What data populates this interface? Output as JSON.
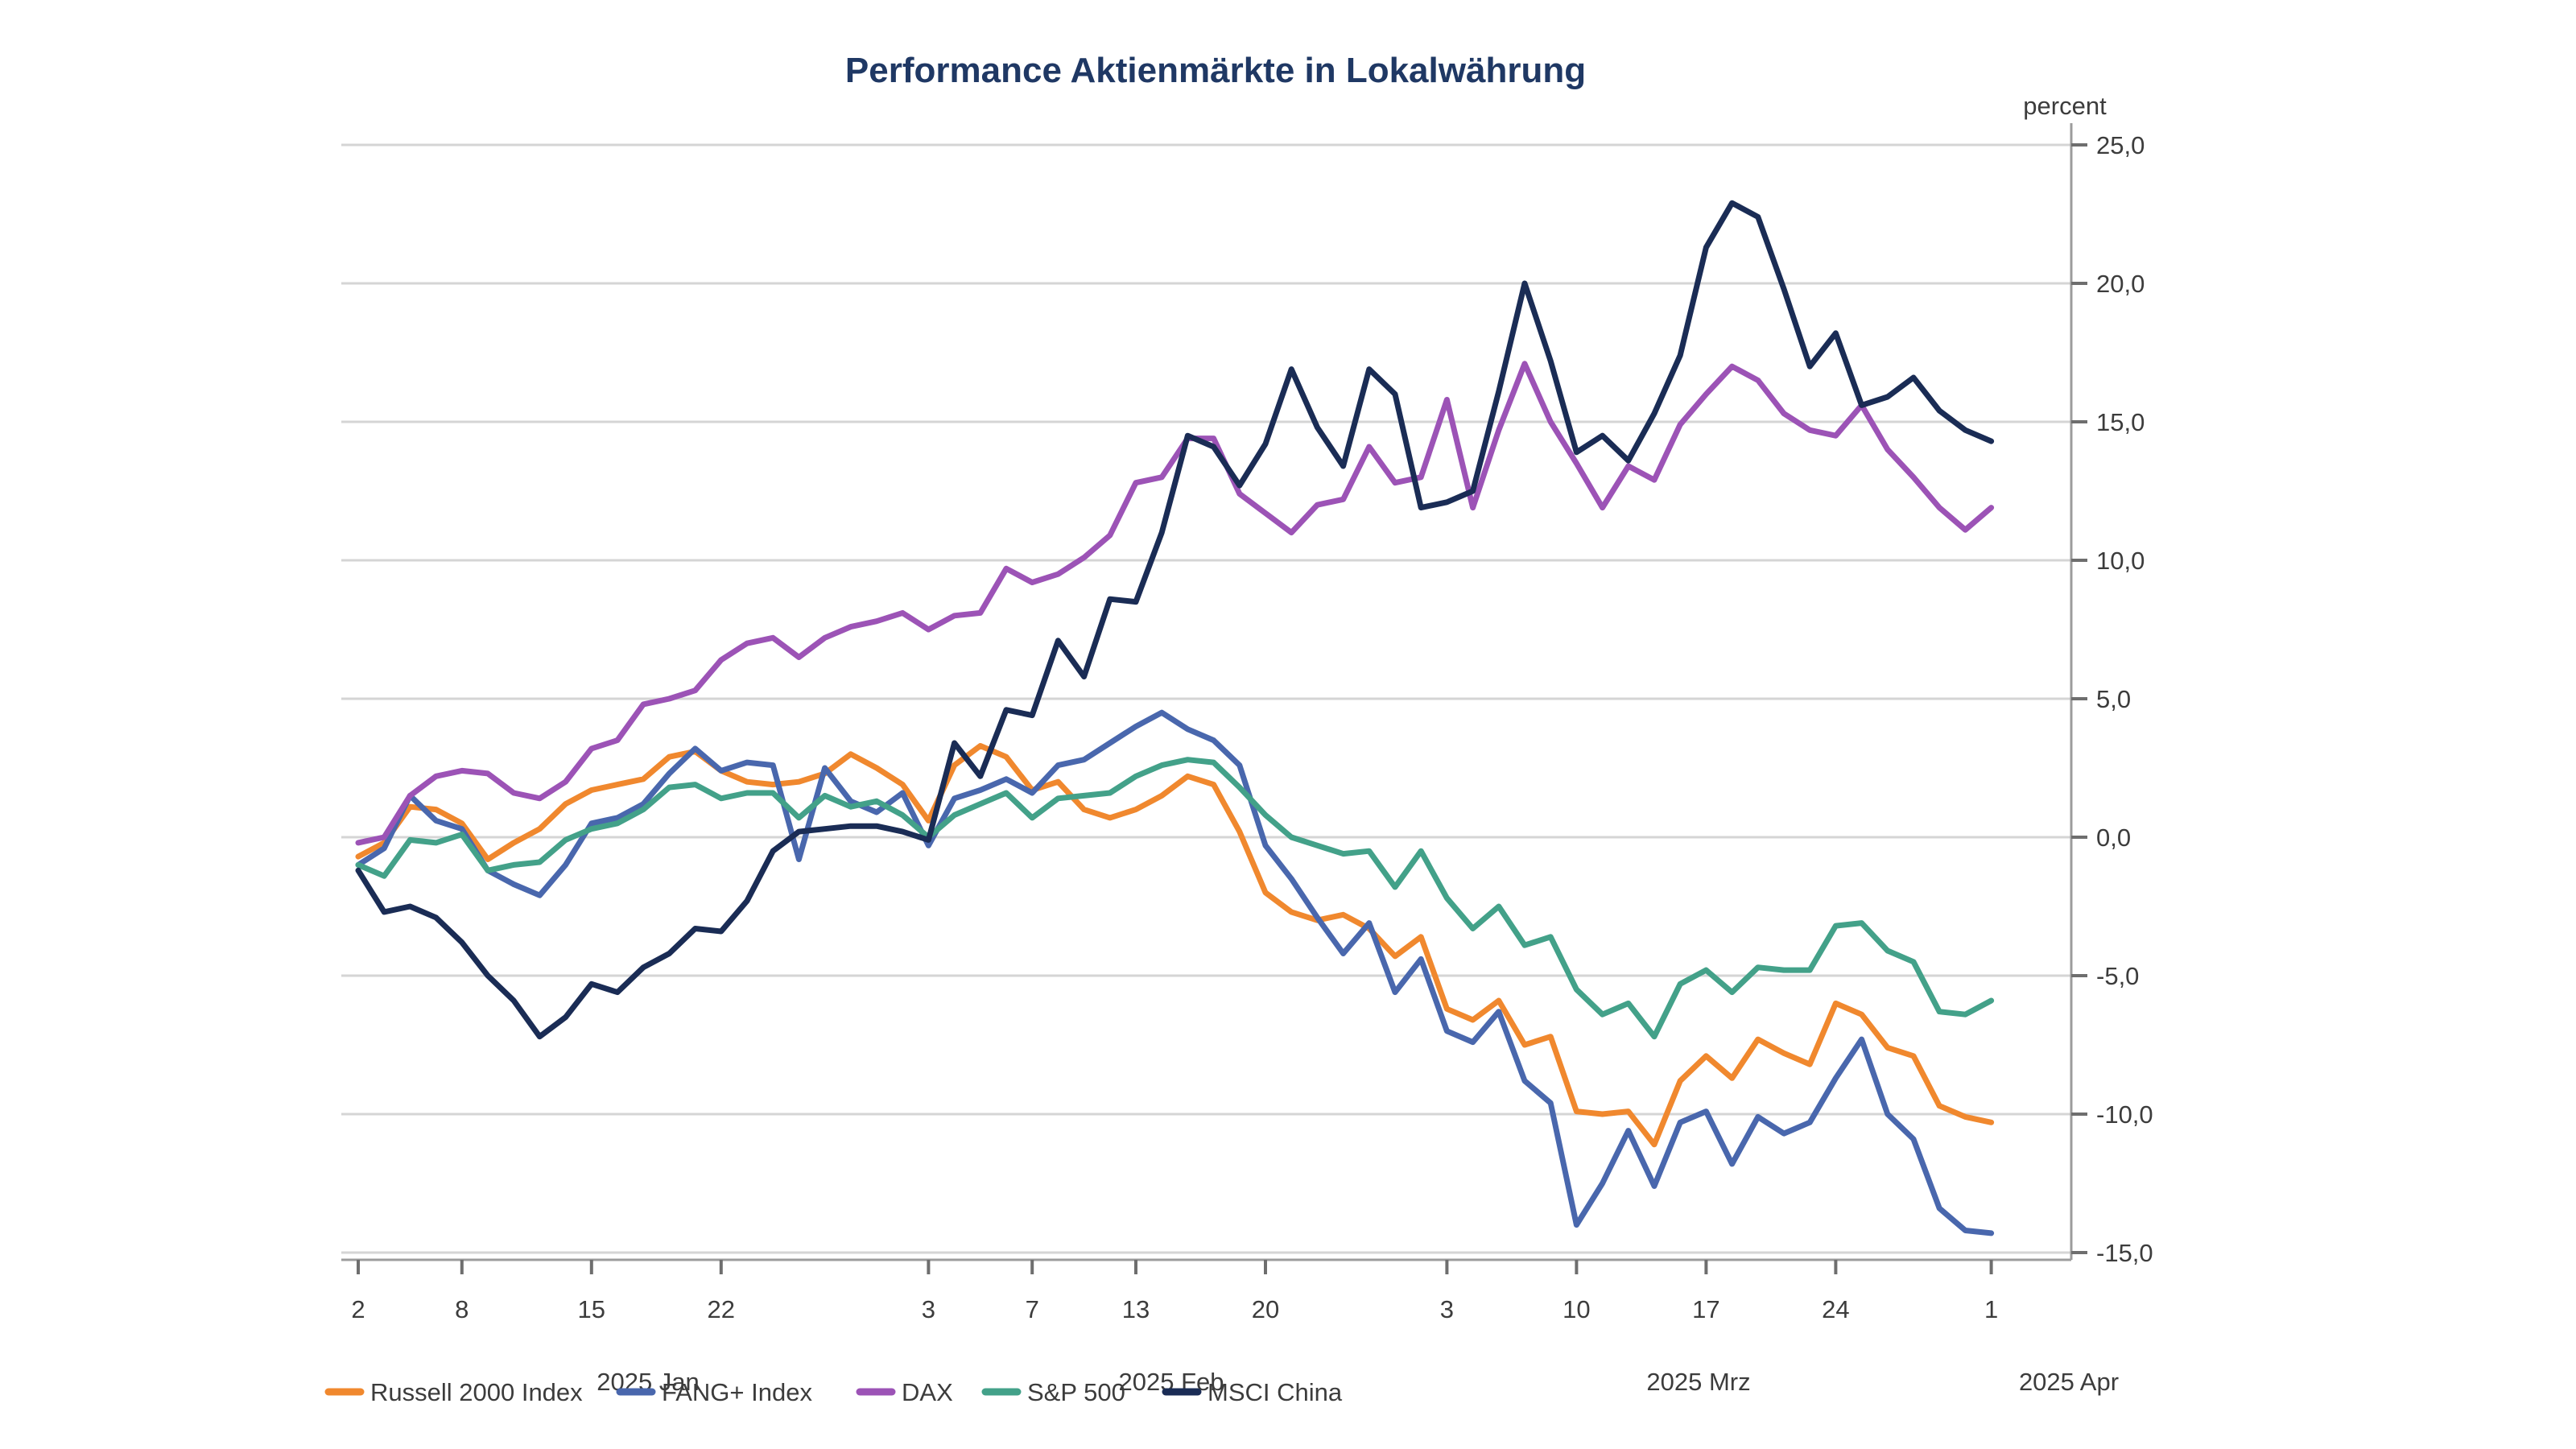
{
  "title": "Performance Aktienmärkte in Lokalwährung",
  "y_axis": {
    "unit_label": "percent",
    "tick_labels": [
      "25,0",
      "20,0",
      "15,0",
      "10,0",
      "5,0",
      "0,0",
      "-5,0",
      "-10,0",
      "-15,0"
    ],
    "tick_values": [
      25,
      20,
      15,
      10,
      5,
      0,
      -5,
      -10,
      -15
    ]
  },
  "x_axis": {
    "ticks": [
      {
        "label": "2",
        "idx": 0
      },
      {
        "label": "8",
        "idx": 4
      },
      {
        "label": "15",
        "idx": 9
      },
      {
        "label": "22",
        "idx": 14
      },
      {
        "label": "3",
        "idx": 22
      },
      {
        "label": "7",
        "idx": 26
      },
      {
        "label": "13",
        "idx": 30
      },
      {
        "label": "20",
        "idx": 35
      },
      {
        "label": "3",
        "idx": 42
      },
      {
        "label": "10",
        "idx": 47
      },
      {
        "label": "17",
        "idx": 52
      },
      {
        "label": "24",
        "idx": 57
      },
      {
        "label": "1",
        "idx": 63
      }
    ],
    "month_labels": [
      {
        "label": "2025 Jan",
        "x": 805
      },
      {
        "label": "2025 Feb",
        "x": 1455
      },
      {
        "label": "2025 Mrz",
        "x": 2110
      },
      {
        "label": "2025 Apr",
        "x": 2570
      }
    ]
  },
  "legend": [
    {
      "label": "Russell 2000 Index",
      "color": "#F0882E"
    },
    {
      "label": "FANG+ Index",
      "color": "#4967AD"
    },
    {
      "label": "DAX",
      "color": "#9C53B6"
    },
    {
      "label": "S&P 500",
      "color": "#43A189"
    },
    {
      "label": "MSCI China",
      "color": "#1A2C55"
    }
  ],
  "colors": {
    "title": "#1F3864",
    "grid": "#D5D5D5",
    "axis": "#9C9C9C",
    "tick": "#6E6E6E",
    "label_text": "#3C3C3C"
  },
  "chart_data": {
    "type": "line",
    "title": "Performance Aktienmärkte in Lokalwährung",
    "ylabel": "percent",
    "ylim": [
      -15,
      25
    ],
    "grid": "horizontal",
    "legend_position": "bottom-left",
    "x_dates": [
      "Jan 2",
      "Jan 3",
      "Jan 6",
      "Jan 7",
      "Jan 8",
      "Jan 9",
      "Jan 10",
      "Jan 13",
      "Jan 14",
      "Jan 15",
      "Jan 16",
      "Jan 17",
      "Jan 20",
      "Jan 21",
      "Jan 22",
      "Jan 23",
      "Jan 24",
      "Jan 27",
      "Jan 28",
      "Jan 29",
      "Jan 30",
      "Jan 31",
      "Feb 3",
      "Feb 4",
      "Feb 5",
      "Feb 6",
      "Feb 7",
      "Feb 10",
      "Feb 11",
      "Feb 12",
      "Feb 13",
      "Feb 14",
      "Feb 17",
      "Feb 18",
      "Feb 19",
      "Feb 20",
      "Feb 21",
      "Feb 24",
      "Feb 25",
      "Feb 26",
      "Feb 27",
      "Feb 28",
      "Mar 3",
      "Mar 4",
      "Mar 5",
      "Mar 6",
      "Mar 7",
      "Mar 10",
      "Mar 11",
      "Mar 12",
      "Mar 13",
      "Mar 14",
      "Mar 17",
      "Mar 18",
      "Mar 19",
      "Mar 20",
      "Mar 21",
      "Mar 24",
      "Mar 25",
      "Mar 26",
      "Mar 27",
      "Mar 28",
      "Mar 31",
      "Apr 1"
    ],
    "series": [
      {
        "name": "Russell 2000 Index",
        "color": "#F0882E",
        "values": [
          -0.7,
          -0.2,
          1.1,
          1.0,
          0.5,
          -0.8,
          -0.2,
          0.3,
          1.2,
          1.7,
          1.9,
          2.1,
          2.9,
          3.1,
          2.4,
          2.0,
          1.9,
          2.0,
          2.3,
          3.0,
          2.5,
          1.9,
          0.6,
          2.6,
          3.3,
          2.9,
          1.7,
          2.0,
          1.0,
          0.7,
          1.0,
          1.5,
          2.2,
          1.9,
          0.2,
          -2.0,
          -2.7,
          -3.0,
          -2.8,
          -3.3,
          -4.3,
          -3.6,
          -6.2,
          -6.6,
          -5.9,
          -7.5,
          -7.2,
          -9.9,
          -10.0,
          -9.9,
          -11.1,
          -8.8,
          -7.9,
          -8.7,
          -7.3,
          -7.8,
          -8.2,
          -6.0,
          -6.4,
          -7.6,
          -7.9,
          -9.7,
          -10.1,
          -10.3
        ]
      },
      {
        "name": "FANG+ Index",
        "color": "#4967AD",
        "values": [
          -1.0,
          -0.4,
          1.5,
          0.6,
          0.3,
          -1.2,
          -1.7,
          -2.1,
          -1.0,
          0.5,
          0.7,
          1.2,
          2.3,
          3.2,
          2.4,
          2.7,
          2.6,
          -0.8,
          2.5,
          1.3,
          0.9,
          1.6,
          -0.3,
          1.4,
          1.7,
          2.1,
          1.6,
          2.6,
          2.8,
          3.4,
          4.0,
          4.5,
          3.9,
          3.5,
          2.6,
          -0.3,
          -1.5,
          -2.9,
          -4.2,
          -3.1,
          -5.6,
          -4.4,
          -7.0,
          -7.4,
          -6.3,
          -8.8,
          -9.6,
          -14.0,
          -12.5,
          -10.6,
          -12.6,
          -10.3,
          -9.9,
          -11.8,
          -10.1,
          -10.7,
          -10.3,
          -8.7,
          -7.3,
          -10.0,
          -10.9,
          -13.4,
          -14.2,
          -14.3
        ]
      },
      {
        "name": "DAX",
        "color": "#9C53B6",
        "values": [
          -0.2,
          0.0,
          1.5,
          2.2,
          2.4,
          2.3,
          1.6,
          1.4,
          2.0,
          3.2,
          3.5,
          4.8,
          5.0,
          5.3,
          6.4,
          7.0,
          7.2,
          6.5,
          7.2,
          7.6,
          7.8,
          8.1,
          7.5,
          8.0,
          8.1,
          9.7,
          9.2,
          9.5,
          10.1,
          10.9,
          12.8,
          13.0,
          14.4,
          14.4,
          12.4,
          11.7,
          11.0,
          12.0,
          12.2,
          14.1,
          12.8,
          13.0,
          15.8,
          11.9,
          14.7,
          17.1,
          15.0,
          13.5,
          11.9,
          13.4,
          12.9,
          14.9,
          16.0,
          17.0,
          16.5,
          15.3,
          14.7,
          14.5,
          15.6,
          14.0,
          13.0,
          11.9,
          11.1,
          11.9
        ]
      },
      {
        "name": "S&P 500",
        "color": "#43A189",
        "values": [
          -1.0,
          -1.4,
          -0.1,
          -0.2,
          0.1,
          -1.2,
          -1.0,
          -0.9,
          -0.1,
          0.3,
          0.5,
          1.0,
          1.8,
          1.9,
          1.4,
          1.6,
          1.6,
          0.7,
          1.5,
          1.1,
          1.3,
          0.8,
          0.0,
          0.8,
          1.2,
          1.6,
          0.7,
          1.4,
          1.5,
          1.6,
          2.2,
          2.6,
          2.8,
          2.7,
          1.8,
          0.8,
          0.0,
          -0.3,
          -0.6,
          -0.5,
          -1.8,
          -0.5,
          -2.2,
          -3.3,
          -2.5,
          -3.9,
          -3.6,
          -5.5,
          -6.4,
          -6.0,
          -7.2,
          -5.3,
          -4.8,
          -5.6,
          -4.7,
          -4.8,
          -4.8,
          -3.2,
          -3.1,
          -4.1,
          -4.5,
          -6.3,
          -6.4,
          -5.9
        ]
      },
      {
        "name": "MSCI China",
        "color": "#1A2C55",
        "values": [
          -1.2,
          -2.7,
          -2.5,
          -2.9,
          -3.8,
          -5.0,
          -5.9,
          -7.2,
          -6.5,
          -5.3,
          -5.6,
          -4.7,
          -4.2,
          -3.3,
          -3.4,
          -2.3,
          -0.5,
          0.2,
          0.3,
          0.4,
          0.4,
          0.2,
          -0.1,
          3.4,
          2.2,
          4.6,
          4.4,
          7.1,
          5.8,
          8.6,
          8.5,
          11.0,
          14.5,
          14.1,
          12.7,
          14.2,
          16.9,
          14.8,
          13.4,
          16.9,
          16.0,
          11.9,
          12.1,
          12.5,
          16.1,
          20.0,
          17.2,
          13.9,
          14.5,
          13.6,
          15.3,
          17.4,
          21.3,
          22.9,
          22.4,
          19.8,
          17.0,
          18.2,
          15.6,
          15.9,
          16.6,
          15.4,
          14.7,
          14.3
        ]
      }
    ]
  }
}
